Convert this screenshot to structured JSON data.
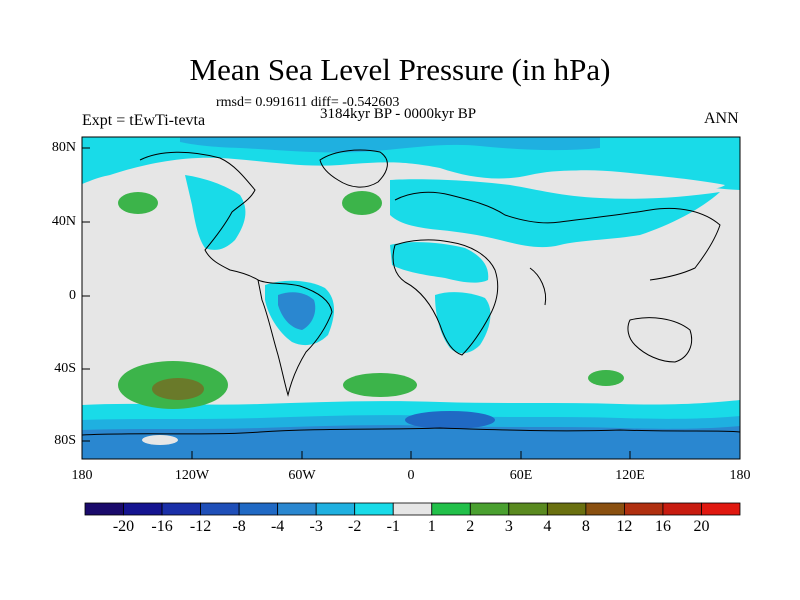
{
  "title": "Mean Sea Level Pressure (in hPa)",
  "stats": "rmsd= 0.991611 diff= -0.542603",
  "period": "3184kyr BP - 0000kyr BP",
  "experiment": "Expt = tEwTi-tevta",
  "season": "ANN",
  "lat_labels": [
    "80N",
    "40N",
    "0",
    "40S",
    "80S"
  ],
  "lon_labels": [
    "180",
    "120W",
    "60W",
    "0",
    "60E",
    "120E",
    "180"
  ],
  "colorbar": {
    "labels": [
      "-20",
      "-16",
      "-12",
      "-8",
      "-4",
      "-3",
      "-2",
      "-1",
      "1",
      "2",
      "3",
      "4",
      "8",
      "12",
      "16",
      "20"
    ],
    "colors": [
      "#1a0a6b",
      "#151490",
      "#1a2fa8",
      "#1f4fb8",
      "#2069c4",
      "#2a87d0",
      "#1fb0e0",
      "#19dbe8",
      "#e6e6e6",
      "#22c04a",
      "#4aa030",
      "#5a8a20",
      "#6a7010",
      "#8a5010",
      "#b03010",
      "#c81c10",
      "#e01810"
    ]
  },
  "colors": {
    "neutral": "#e6e6e6",
    "light_blue": "#19dbe8",
    "mid_blue": "#1fb0e0",
    "blue": "#2a87d0",
    "dark_blue": "#2069c4",
    "green": "#3cb44a",
    "olive": "#6a7a2a"
  }
}
